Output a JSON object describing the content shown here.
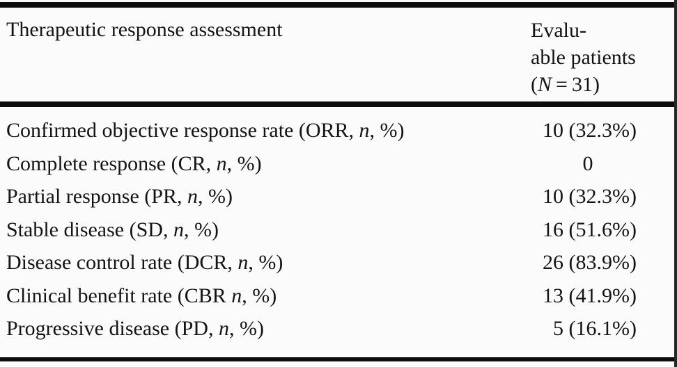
{
  "table": {
    "header": {
      "col1": "Therapeutic response assessment",
      "col2_line1": "Evalu-",
      "col2_line2": "able patients",
      "col2_line3_pre": "(",
      "col2_line3_italic": "N",
      "col2_line3_post": " = 31)"
    },
    "rows": [
      {
        "label_pre": "Confirmed objective response rate (ORR, ",
        "label_italic": "n",
        "label_post": ", %)",
        "value": "10 (32.3%)"
      },
      {
        "label_pre": "Complete response (CR, ",
        "label_italic": "n",
        "label_post": ", %)",
        "value": "0"
      },
      {
        "label_pre": "Partial response (PR, ",
        "label_italic": "n",
        "label_post": ", %)",
        "value": "10 (32.3%)"
      },
      {
        "label_pre": "Stable disease (SD, ",
        "label_italic": "n",
        "label_post": ", %)",
        "value": "16 (51.6%)"
      },
      {
        "label_pre": "Disease control rate (DCR, ",
        "label_italic": "n",
        "label_post": ", %)",
        "value": "26 (83.9%)"
      },
      {
        "label_pre": "Clinical benefit rate (CBR ",
        "label_italic": "n",
        "label_post": ", %)",
        "value": "13 (41.9%)"
      },
      {
        "label_pre": "Progressive disease (PD, ",
        "label_italic": "n",
        "label_post": ", %)",
        "value": "5 (16.1%)"
      }
    ]
  },
  "colors": {
    "background": "#fbfbfb",
    "text": "#141414",
    "rule": "#0c0c0c",
    "scan_edge": "#262626"
  }
}
